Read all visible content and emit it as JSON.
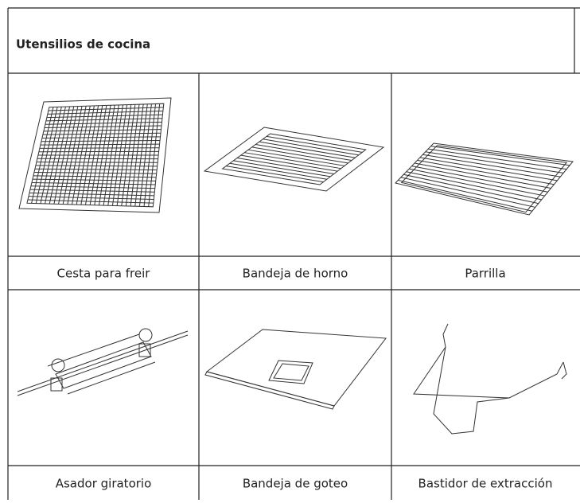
{
  "header": {
    "title": "Utensilios de cocina"
  },
  "items": [
    {
      "label": "Cesta para freir"
    },
    {
      "label": "Bandeja de horno"
    },
    {
      "label": "Parrilla"
    },
    {
      "label": "Asador giratorio"
    },
    {
      "label": "Bandeja de goteo"
    },
    {
      "label": "Bastidor de extracción"
    }
  ]
}
